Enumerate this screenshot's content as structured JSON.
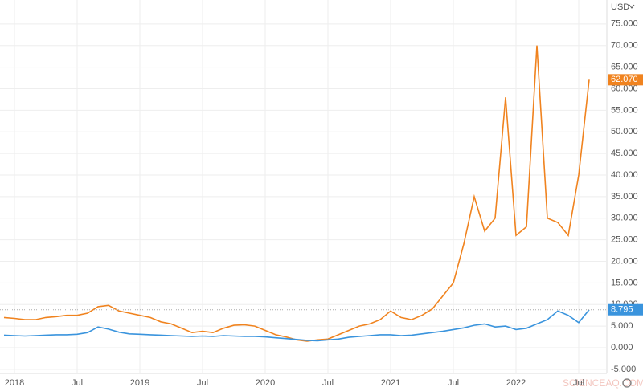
{
  "chart_data": {
    "type": "line",
    "currency": "USD",
    "watermark": "SCIENCEAQ.COM",
    "x": [
      "2017-12",
      "2018-01",
      "2018-02",
      "2018-03",
      "2018-04",
      "2018-05",
      "2018-06",
      "2018-07",
      "2018-08",
      "2018-09",
      "2018-10",
      "2018-11",
      "2018-12",
      "2019-01",
      "2019-02",
      "2019-03",
      "2019-04",
      "2019-05",
      "2019-06",
      "2019-07",
      "2019-08",
      "2019-09",
      "2019-10",
      "2019-11",
      "2019-12",
      "2020-01",
      "2020-02",
      "2020-03",
      "2020-04",
      "2020-05",
      "2020-06",
      "2020-07",
      "2020-08",
      "2020-09",
      "2020-10",
      "2020-11",
      "2020-12",
      "2021-01",
      "2021-02",
      "2021-03",
      "2021-04",
      "2021-05",
      "2021-06",
      "2021-07",
      "2021-08",
      "2021-09",
      "2021-10",
      "2021-11",
      "2021-12",
      "2022-01",
      "2022-02",
      "2022-03",
      "2022-04",
      "2022-05",
      "2022-06",
      "2022-07",
      "2022-08"
    ],
    "series": [
      {
        "color": "#f0831f",
        "values": [
          7000,
          6800,
          6500,
          6500,
          7000,
          7200,
          7500,
          7500,
          8000,
          9500,
          9800,
          8500,
          8000,
          7500,
          7000,
          6000,
          5500,
          4500,
          3500,
          3800,
          3500,
          4500,
          5200,
          5300,
          5000,
          4000,
          3000,
          2500,
          1800,
          1500,
          1800,
          2000,
          3000,
          4000,
          5000,
          5500,
          6500,
          8500,
          7000,
          6500,
          7500,
          9000,
          12000,
          15000,
          24000,
          35000,
          27000,
          30000,
          58000,
          26000,
          28000,
          70000,
          30000,
          29000,
          26000,
          40000,
          62070
        ],
        "value_labels": [
          null,
          null,
          null,
          null,
          null,
          null,
          null,
          null,
          null,
          null,
          null,
          null,
          null,
          null,
          null,
          null,
          null,
          null,
          null,
          null,
          null,
          null,
          null,
          null,
          null,
          null,
          null,
          null,
          null,
          null,
          null,
          null,
          null,
          null,
          null,
          null,
          null,
          null,
          null,
          null,
          null,
          null,
          null,
          null,
          null,
          null,
          null,
          null,
          null,
          null,
          null,
          null,
          null,
          null,
          null,
          null,
          "62.070"
        ]
      },
      {
        "color": "#3a94dd",
        "values": [
          2900,
          2800,
          2700,
          2800,
          2900,
          3000,
          3000,
          3100,
          3500,
          4800,
          4300,
          3600,
          3200,
          3100,
          3000,
          2900,
          2800,
          2700,
          2600,
          2700,
          2600,
          2800,
          2700,
          2600,
          2600,
          2500,
          2300,
          2100,
          1900,
          1700,
          1600,
          1800,
          2000,
          2400,
          2600,
          2800,
          3000,
          3000,
          2800,
          2900,
          3200,
          3500,
          3800,
          4200,
          4600,
          5200,
          5500,
          4800,
          5000,
          4200,
          4500,
          5500,
          6500,
          8500,
          7500,
          5800,
          8795
        ],
        "value_labels": [
          null,
          null,
          null,
          null,
          null,
          null,
          null,
          null,
          null,
          null,
          null,
          null,
          null,
          null,
          null,
          null,
          null,
          null,
          null,
          null,
          null,
          null,
          null,
          null,
          null,
          null,
          null,
          null,
          null,
          null,
          null,
          null,
          null,
          null,
          null,
          null,
          null,
          null,
          null,
          null,
          null,
          null,
          null,
          null,
          null,
          null,
          null,
          null,
          null,
          null,
          null,
          null,
          null,
          null,
          null,
          null,
          "8.795"
        ]
      }
    ],
    "xlim": [
      "2017-12",
      "2022-09"
    ],
    "xticks": [
      {
        "value": "2018-01",
        "label": "2018"
      },
      {
        "value": "2018-07",
        "label": "Jul"
      },
      {
        "value": "2019-01",
        "label": "2019"
      },
      {
        "value": "2019-07",
        "label": "Jul"
      },
      {
        "value": "2020-01",
        "label": "2020"
      },
      {
        "value": "2020-07",
        "label": "Jul"
      },
      {
        "value": "2021-01",
        "label": "2021"
      },
      {
        "value": "2021-07",
        "label": "Jul"
      },
      {
        "value": "2022-01",
        "label": "2022"
      },
      {
        "value": "2022-07",
        "label": "Jul"
      }
    ],
    "ylim": [
      -5950,
      80550
    ],
    "yticks": [
      {
        "value": -5000,
        "label": "-5.000"
      },
      {
        "value": 0,
        "label": "0.000"
      },
      {
        "value": 5000,
        "label": "5.000"
      },
      {
        "value": 10000,
        "label": "10.000"
      },
      {
        "value": 15000,
        "label": "15.000"
      },
      {
        "value": 20000,
        "label": "20.000"
      },
      {
        "value": 25000,
        "label": "25.000"
      },
      {
        "value": 30000,
        "label": "30.000"
      },
      {
        "value": 35000,
        "label": "35.000"
      },
      {
        "value": 40000,
        "label": "40.000"
      },
      {
        "value": 45000,
        "label": "45.000"
      },
      {
        "value": 50000,
        "label": "50.000"
      },
      {
        "value": 55000,
        "label": "55.000"
      },
      {
        "value": 60000,
        "label": "60.000"
      },
      {
        "value": 65000,
        "label": "65.000"
      },
      {
        "value": 70000,
        "label": "70.000"
      },
      {
        "value": 75000,
        "label": "75.000"
      }
    ],
    "grid": true
  }
}
